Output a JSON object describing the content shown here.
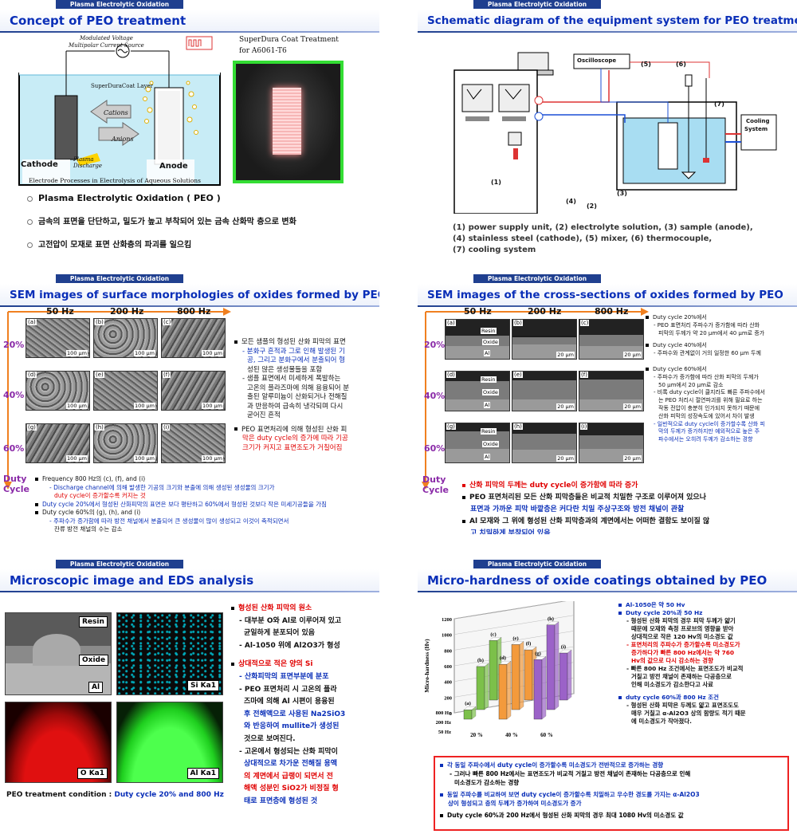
{
  "header_tag": "Plasma Electrolytic Oxidation",
  "s1": {
    "title": "Concept of PEO treatment",
    "diagram": {
      "voltage": "Modulated Voltage",
      "current": "Multipolar Current Source",
      "layer": "SuperDuraCoat Layer",
      "cations": "Cations",
      "anions": "Anions",
      "cathode": "Cathode",
      "plasma": "Plasma",
      "discharge": "Discharge",
      "anode": "Anode",
      "caption": "Electrode Processes in Electrolysis of Aqueous Solutions"
    },
    "photo_title1": "SuperDura Coat Treatment",
    "photo_title2": "for A6061-T6",
    "bullets": [
      "Plasma Electrolytic Oxidation ( PEO )",
      "금속의 표면을 단단하고, 밀도가 높고 부착되어 있는 금속 산화막 층으로 변화",
      "고전압이 모재로 표면 산화층의 파괴를 일으킴"
    ]
  },
  "s2": {
    "title": "Schematic diagram of the equipment system for PEO treatment",
    "labels": {
      "oscilloscope": "Oscilloscope",
      "cooling1": "Cooling",
      "cooling2": "System",
      "n1": "(1)",
      "n2": "(2)",
      "n3": "(3)",
      "n4": "(4)",
      "n5": "(5)",
      "n6": "(6)",
      "n7": "(7)"
    },
    "legend": [
      "(1) power supply unit, (2) electrolyte solution, (3) sample (anode),",
      "(4) stainless steel (cathode), (5) mixer, (6) thermocouple,",
      "(7) cooling system"
    ]
  },
  "s3": {
    "title": "SEM images of surface morphologies of oxides formed by PEO",
    "freqs": [
      "50 Hz",
      "200 Hz",
      "800 Hz"
    ],
    "duties": [
      "20%",
      "40%",
      "60%"
    ],
    "duty_label1": "Duty",
    "duty_label2": "Cycle",
    "img_labels": [
      "(a)",
      "(b)",
      "(c)",
      "(d)",
      "(e)",
      "(f)",
      "(g)",
      "(h)",
      "(i)"
    ],
    "scale": "100 μm",
    "right": [
      "모든 샘플의 형성된 산화 피막의 표면",
      "- 분화구 흔적과 그로 인해 발생된 기",
      "공, 그리고 분화구에서 분출되어 형",
      "성된 많은 생성물들을 포함",
      "- 샘플 표면에서 미세하게 폭발하는",
      "고온의 플라즈마에 의해 용융되어 분",
      "출된 알루미늄이 산화되거나 전해질",
      "과 반응하여 급속히 냉각되며 다시",
      "굳어진 흔적",
      "PEO 표면처리에 의해 형성된 산화 피",
      "막은 duty cycle의 증가에 따라 기공",
      "크기가 커지고 표면조도가 거칠어짐"
    ],
    "bottom": [
      "Frequency 800 Hz의 (c), (f), and (i)",
      "- Discharge channel에 의해 발생한 기공의 크기와 분출에 의해 생성된 생성물의 크기가",
      "duty cycle이 증가할수록 커지는 것",
      "Duty cycle 20%에서 형성된 산화피막의 표면은 보다 평탄하고 60%에서 형성된 것보다 작은 미세기공들을 가짐",
      "Duty cycle 60%의 (g), (h), and (i)",
      "- 주파수가 증가함에 따라 방전 채널에서 분출되어 큰 생성물이 많이 생성되고 이것이 축적되면서",
      "잔류 방전 채널의 수는 감소"
    ]
  },
  "s4": {
    "title": "SEM images of the cross-sections of oxides formed by PEO",
    "freqs": [
      "50 Hz",
      "200 Hz",
      "800 Hz"
    ],
    "duties": [
      "20%",
      "40%",
      "60%"
    ],
    "duty_label1": "Duty",
    "duty_label2": "Cycle",
    "img_labels": [
      "(a)",
      "(b)",
      "(c)",
      "(d)",
      "(e)",
      "(f)",
      "(g)",
      "(h)",
      "(i)"
    ],
    "scale": "20 μm",
    "tags": [
      "Resin",
      "Oxide",
      "Al"
    ],
    "right": [
      "Duty cycle 20%에서",
      "- PEO 표면처리 주파수가 증가함에 따라 산화",
      "피막의 두께가 약 20 μm에서 40 μm로 증가",
      "Duty cycle 40%에서",
      "- 주파수와 관계없이 거의 일정한 60 μm 두께",
      "Duty cycle 60%에서",
      "- 주파수가 증가함에 따라 산화 피막의 두께가",
      "50 μm에서 20 μm로 감소",
      "- 비록 duty cycle이 클지라도 빠른 주파수에서",
      "는 PEO 처리시 절연파괴를 위해 필요로 하는",
      "작동 전압이 충분히 인가되지 못하기 때문에",
      "산화 피막의 성장속도에 있어서 차이 발생",
      "- 일반적으로 duty cycle이 증가할수록 산화 피",
      "막의 두께가 증가하지만 예외적으로 높은 주",
      "파수에서는 오히려 두께가 감소하는 경향"
    ],
    "bottom": [
      "산화 피막의 두께는 duty cycle이 증가함에 따라 증가",
      "PEO 표면처리된 모든 산화 피막층들은 비교적 치밀한 구조로 이루어져 있으나",
      "표면과 가까운 피막 바깥층은 커다란 치밀 주상구조와 방전 채널이 관찰",
      "Al 모재와 그 위에 형성된 산화 피막층과의 계면에서는 어떠한 결함도 보이질 않",
      "고 치밀하게 부착되어 있음"
    ]
  },
  "s5": {
    "title": "Microscopic image and EDS analysis",
    "maps": [
      "Resin",
      "Oxide",
      "Al",
      "Si Ka1",
      "O Ka1",
      "Al Ka1"
    ],
    "right": [
      "형성된 산화 피막의 원소",
      "- 대부분 O와 Al로 이루어져 있고",
      "균일하게 분포되어 있음",
      "- Al-1050 위에 Al2O3가 형성",
      "상대적으로 적은 양의 Si",
      "- 산화피막의 표면부분에 분포",
      "- PEO 표면처리 시 고온의 플라",
      "즈마에 의해 Al 시편이 용융된",
      "후 전해액으로 사용된 Na2SiO3",
      "와 반응하여 mullite가 생성된",
      "것으로 보여진다.",
      "- 고온에서 형성되는 산화 피막이",
      "상대적으로 차가운 전해질 용액",
      "의 계면에서 급랭이 되면서 전",
      "해액 성분인 SiO2가 비정질 형",
      "태로 표면층에 형성된 것"
    ],
    "condition": "PEO treatment condition : ",
    "condition_val": "Duty cycle 20% and 800 Hz"
  },
  "s6": {
    "title": "Micro-hardness of oxide coatings obtained by PEO",
    "right": [
      "Al-1050은 약 50 Hv",
      "Duty cycle 20%과 50 Hz",
      "- 형성된 산화 피막의 경우 피막 두께가 얇기",
      "때문에 모재와 측정 프로브의 영향을 받아",
      "상대적으로 작은 120 Hv의 미소경도 값",
      "- 표면처리의 주파수가 증가할수록 미소경도가",
      "증가하다가 빠른 800 Hz에서는 약 760",
      "Hv의 값으로 다시 감소하는 경향",
      "- 빠른 800 Hz 조건에서는 표면조도가 비교적",
      "거칠고 방전 채널이 존재하는 다공층으로",
      "인해 미소경도가 감소한다고 사료",
      "duty cycle 60%과 800 Hz 조건",
      "- 형성된 산화 피막은 두께도 얇고 표면조도도",
      "매우 거칠고 α-Al2O3 상의 함량도 적기 때문",
      "에 미소경도가 작아졌다."
    ],
    "box": [
      "각 동일 주파수에서 duty cycle이 증가할수록 미소경도가 전반적으로 증가하는 경향",
      "- 그러나 빠른 800 Hz에서는 표면조도가 비교적 거칠고 방전 채널이 존재하는 다공층으로 인해",
      "미소경도가 감소하는 경향",
      "동일 주파수를 비교하여 보면 duty cycle이 증가할수록 치밀하고 우수한 경도를 가지는 α-Al2O3",
      "상이 형성되고 층의 두께가 증가하여 미소경도가 증가",
      "Duty cycle 60%과 200 Hz에서 형성된 산화 피막의 경우 최대 1080 Hv의 미소경도 값"
    ]
  },
  "chart_data": {
    "type": "bar",
    "title": "",
    "ylabel": "Micro-hardness (Hv)",
    "ylim": [
      0,
      1200
    ],
    "yticks": [
      0,
      200,
      400,
      600,
      800,
      1000,
      1200
    ],
    "categories": [
      "20 %",
      "40 %",
      "60 %"
    ],
    "series": [
      {
        "name": "50 Hz",
        "values": [
          120,
          700,
          760
        ]
      },
      {
        "name": "200 Hz",
        "values": [
          550,
          830,
          1080
        ]
      },
      {
        "name": "800 Hz",
        "values": [
          760,
          640,
          600
        ]
      }
    ],
    "bar_labels": [
      "(a)",
      "(b)",
      "(c)",
      "(d)",
      "(e)",
      "(f)",
      "(g)",
      "(h)",
      "(i)"
    ],
    "colors": {
      "20 %": "#7cc04a",
      "40 %": "#f39a3c",
      "60 %": "#9b62c8"
    }
  }
}
